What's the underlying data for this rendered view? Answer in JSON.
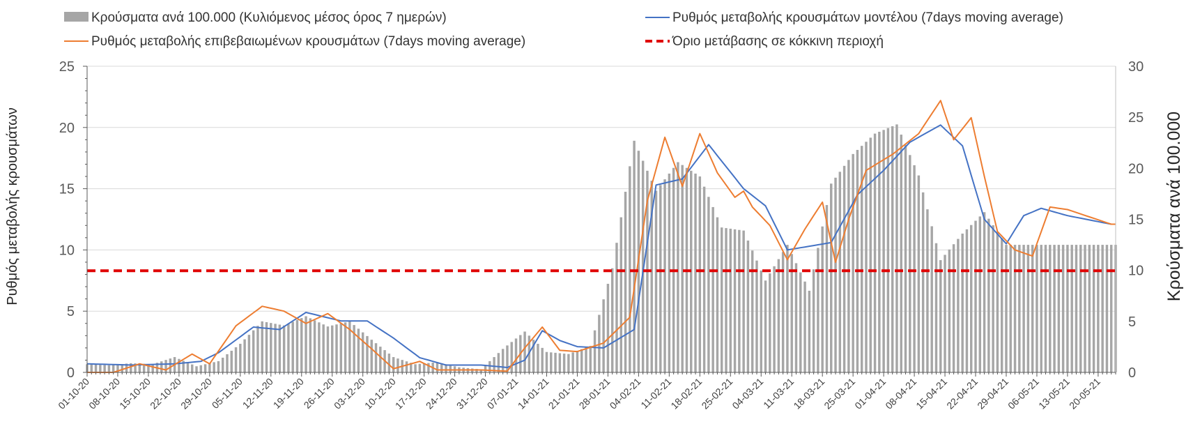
{
  "chart_data": {
    "type": "bar+line",
    "legend": {
      "bars": "Κρούσματα ανά 100.000 (Κυλιόμενος μέσος όρος 7 ημερών)",
      "model": "Ρυθμός μεταβολής κρουσμάτων μοντέλου (7days moving average)",
      "confirmed": "Ρυθμός μεταβολής επιβεβαιωμένων κρουσμάτων (7days moving average)",
      "threshold": "Όριο μετάβασης σε κόκκινη περιοχή"
    },
    "ylabel_left": "Ρυθμός μεταβολής κρουσμάτων",
    "ylabel_right": "Κρούσματα ανά 100.000",
    "ylim_left": [
      0,
      25
    ],
    "ylim_right": [
      0,
      30
    ],
    "yticks_left": [
      "0",
      "5",
      "10",
      "15",
      "20",
      "25"
    ],
    "yticks_right": [
      "0",
      "5",
      "10",
      "15",
      "20",
      "25",
      "30"
    ],
    "grid": true,
    "legend_position": "top",
    "x_start": "01-10-20",
    "x_end": "23-05-21",
    "x_tick_labels": [
      "01-10-20",
      "08-10-20",
      "15-10-20",
      "22-10-20",
      "29-10-20",
      "05-11-20",
      "12-11-20",
      "19-11-20",
      "26-11-20",
      "03-12-20",
      "10-12-20",
      "17-12-20",
      "24-12-20",
      "31-12-20",
      "07-01-21",
      "14-01-21",
      "21-01-21",
      "28-01-21",
      "04-02-21",
      "11-02-21",
      "18-02-21",
      "25-02-21",
      "04-03-21",
      "11-03-21",
      "18-03-21",
      "25-03-21",
      "01-04-21",
      "08-04-21",
      "15-04-21",
      "22-04-21",
      "29-04-21",
      "06-05-21",
      "13-05-21",
      "20-05-21"
    ],
    "threshold_value": 8.3,
    "colors": {
      "bars": "#a6a6a6",
      "model": "#4472c4",
      "confirmed": "#ed7d31",
      "threshold": "#e00000",
      "grid": "#d9d9d9",
      "axis": "#595959"
    },
    "bars_key_days": [
      0,
      5,
      10,
      15,
      20,
      25,
      30,
      35,
      40,
      45,
      50,
      55,
      60,
      65,
      70,
      75,
      80,
      85,
      90,
      95,
      100,
      105,
      110,
      115,
      120,
      125,
      130,
      135,
      140,
      145,
      150,
      155,
      160,
      165,
      170,
      175,
      180,
      185,
      190,
      195,
      200,
      205,
      210,
      215,
      220,
      225,
      230,
      235
    ],
    "bars_key_values": [
      0.8,
      0.7,
      0.9,
      0.8,
      1.5,
      0.6,
      1.1,
      2.8,
      5.0,
      4.6,
      5.5,
      4.5,
      5.0,
      3.2,
      1.5,
      0.8,
      1.0,
      0.5,
      0.3,
      2.3,
      4.0,
      2.0,
      1.8,
      2.6,
      10.2,
      22.7,
      17.8,
      20.6,
      19.2,
      14.2,
      13.9,
      9.0,
      12.5,
      8.0,
      18.5,
      21.4,
      23.4,
      24.3,
      19.3,
      11.0,
      13.6,
      15.7,
      12.5,
      12.5,
      12.5,
      12.5,
      12.5,
      12.5
    ],
    "model_key_days": [
      0,
      10,
      20,
      26,
      30,
      38,
      44,
      50,
      58,
      64,
      70,
      76,
      82,
      90,
      96,
      100,
      104,
      108,
      112,
      118,
      125,
      130,
      136,
      142,
      150,
      155,
      160,
      165,
      170,
      176,
      182,
      188,
      195,
      200,
      205,
      210,
      214,
      218,
      224,
      234
    ],
    "model_key_values": [
      0.7,
      0.6,
      0.7,
      0.9,
      1.6,
      3.7,
      3.5,
      4.9,
      4.2,
      4.2,
      2.8,
      1.2,
      0.6,
      0.6,
      0.4,
      1.0,
      3.4,
      2.6,
      2.1,
      2.0,
      3.5,
      15.3,
      15.8,
      18.6,
      15.0,
      13.6,
      10.0,
      10.3,
      10.6,
      14.5,
      16.5,
      18.8,
      20.2,
      18.5,
      12.5,
      10.5,
      12.8,
      13.4,
      12.8,
      12.1
    ],
    "confirmed_key_days": [
      0,
      6,
      12,
      18,
      24,
      28,
      34,
      40,
      45,
      50,
      55,
      60,
      66,
      70,
      76,
      80,
      84,
      90,
      96,
      100,
      104,
      108,
      112,
      118,
      124,
      128,
      132,
      136,
      140,
      144,
      148,
      150,
      152,
      156,
      160,
      164,
      168,
      171,
      174,
      178,
      184,
      190,
      195,
      198,
      202,
      205,
      208,
      212,
      216,
      220,
      224,
      234
    ],
    "confirmed_key_values": [
      0,
      0,
      0.7,
      0.2,
      1.5,
      0.7,
      3.8,
      5.4,
      5.0,
      4.0,
      4.8,
      3.5,
      1.6,
      0.3,
      0.9,
      0.2,
      0.2,
      0.2,
      0.1,
      2.0,
      3.7,
      1.8,
      1.7,
      2.4,
      4.5,
      14.0,
      19.2,
      15.2,
      19.5,
      16.3,
      14.3,
      14.8,
      13.5,
      12.0,
      9.2,
      11.7,
      13.9,
      9.0,
      12.5,
      16.5,
      17.8,
      19.5,
      22.2,
      19.0,
      20.8,
      16.0,
      11.5,
      10.0,
      9.5,
      13.5,
      13.3,
      12.1
    ]
  }
}
